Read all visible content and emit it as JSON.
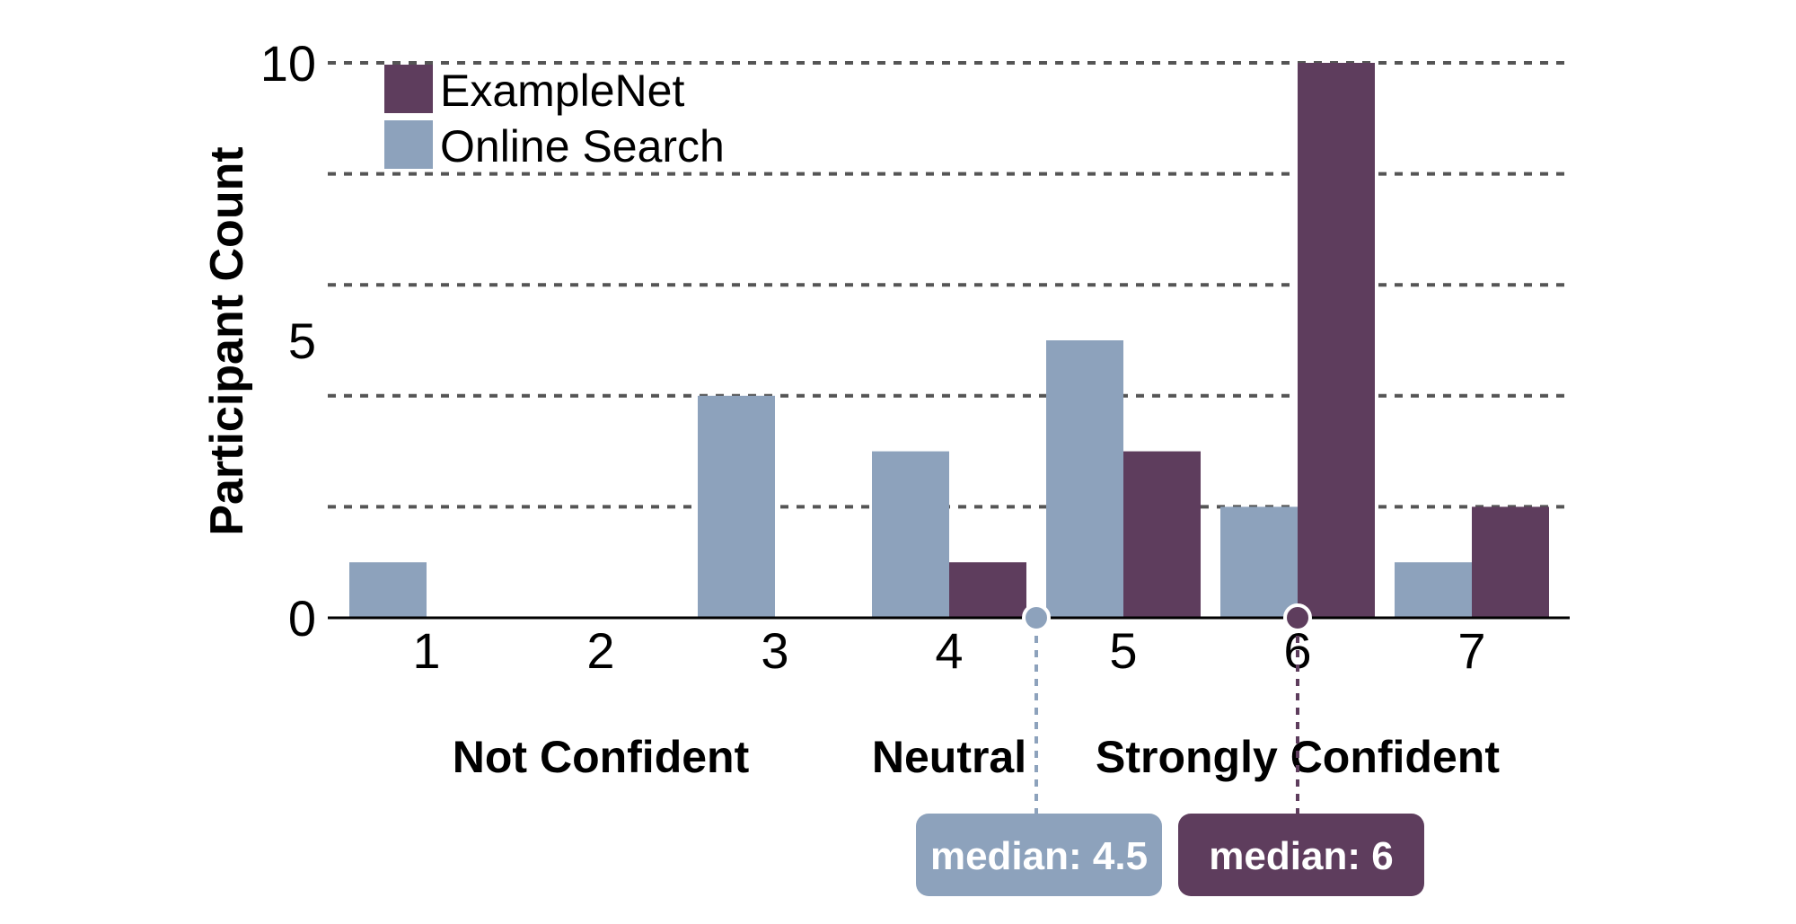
{
  "chart_data": {
    "type": "bar",
    "ylabel": "Participant Count",
    "xlabel": "",
    "categories": [
      "1",
      "2",
      "3",
      "4",
      "5",
      "6",
      "7"
    ],
    "ylim": [
      0,
      10
    ],
    "yticks": [
      0,
      5,
      10
    ],
    "gridlines": [
      2,
      4,
      6,
      8,
      10
    ],
    "grid": "dashed horizontal",
    "legend_placement": "top-left",
    "series": [
      {
        "name": "Online Search",
        "color": "#8da2bc",
        "values": [
          1,
          0,
          4,
          3,
          5,
          2,
          1
        ]
      },
      {
        "name": "ExampleNet",
        "color": "#5e3d5d",
        "values": [
          0,
          0,
          0,
          1,
          3,
          10,
          2
        ]
      }
    ],
    "legend_order": [
      "ExampleNet",
      "Online Search"
    ],
    "scale_anchors": [
      {
        "label": "Not Confident",
        "position": 2
      },
      {
        "label": "Neutral",
        "position": 4
      },
      {
        "label": "Strongly Confident",
        "position": 6
      }
    ],
    "medians": [
      {
        "series": "Online Search",
        "value": 4.5,
        "label": "median: 4.5",
        "color": "#8da2bc"
      },
      {
        "series": "ExampleNet",
        "value": 6,
        "label": "median: 6",
        "color": "#5e3d5d"
      }
    ]
  }
}
